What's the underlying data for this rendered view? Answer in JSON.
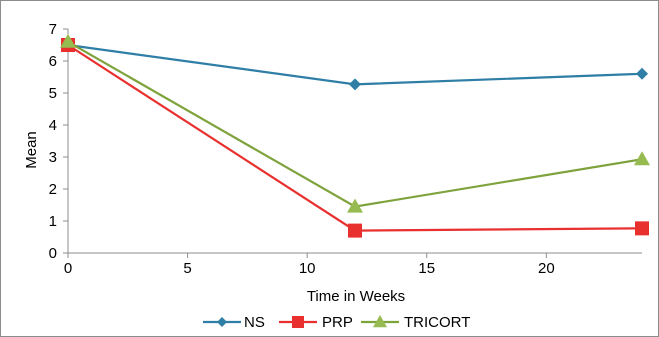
{
  "chart_data": {
    "type": "line",
    "title": "",
    "xlabel": "Time in Weeks",
    "ylabel": "Mean",
    "xlim": [
      0,
      24
    ],
    "ylim": [
      0,
      7
    ],
    "xticks": [
      0,
      5,
      10,
      15,
      20
    ],
    "yticks": [
      0,
      1,
      2,
      3,
      4,
      5,
      6,
      7
    ],
    "grid": false,
    "legend": "bottom",
    "x": [
      0,
      12,
      24
    ],
    "series": [
      {
        "name": "NS",
        "values": [
          6.5,
          5.27,
          5.6
        ],
        "color": "#2e7ea6",
        "marker": "diamond"
      },
      {
        "name": "PRP",
        "values": [
          6.5,
          0.7,
          0.77
        ],
        "color": "#e8312f",
        "marker": "square"
      },
      {
        "name": "TRICORT",
        "values": [
          6.6,
          1.45,
          2.93
        ],
        "color": "#7ea33c",
        "marker": "triangle",
        "marker_color": "#96bb50"
      }
    ]
  }
}
